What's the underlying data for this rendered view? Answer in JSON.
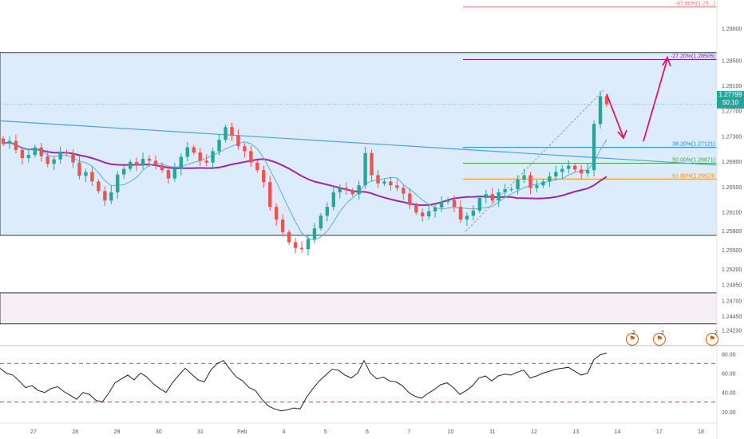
{
  "chart_data": [
    {
      "type": "candlestick",
      "x_tick_labels": [
        "27",
        "28",
        "29",
        "30",
        "31",
        "Feb",
        "4",
        "5",
        "6",
        "7",
        "10",
        "11",
        "12",
        "13",
        "14",
        "17",
        "18"
      ],
      "price_axis_ticks": [
        "1.29000",
        "1.28500",
        "1.28100",
        "1.27700",
        "1.27300",
        "1.26900",
        "1.26500",
        "1.26100",
        "1.25800",
        "1.25500",
        "1.25200",
        "1.24950",
        "1.24700",
        "1.24450",
        "1.24230"
      ],
      "ylim": [
        1.2415,
        1.2945
      ],
      "current_price": "1.27799",
      "countdown": "50:10",
      "range_box": {
        "top": 1.2862,
        "bottom": 1.2573
      },
      "lower_box": {
        "top": 1.2482,
        "bottom": 1.2433
      },
      "trendline": {
        "start": 1.2754,
        "end": 1.2684
      },
      "fibonacci": [
        {
          "label": "-67.80%(1.29...)",
          "value": 1.2934,
          "color": "#e57373"
        },
        {
          "label": "-27.20%(1.28505)",
          "value": 1.2851,
          "color": "#7b1fa2"
        },
        {
          "label": "38.20%(1.27121)",
          "value": 1.2712,
          "color": "#1e88e5"
        },
        {
          "label": "50.00%(1.26871)",
          "value": 1.2687,
          "color": "#43a047"
        },
        {
          "label": "61.80%(1.26623)",
          "value": 1.2662,
          "color": "#fb8c00"
        }
      ],
      "close_series": [
        1.2718,
        1.2722,
        1.2708,
        1.2695,
        1.27,
        1.2712,
        1.2698,
        1.2686,
        1.2693,
        1.2705,
        1.2702,
        1.2688,
        1.2667,
        1.2673,
        1.2658,
        1.2643,
        1.2628,
        1.2641,
        1.2669,
        1.2678,
        1.2689,
        1.2683,
        1.2694,
        1.2691,
        1.2684,
        1.2676,
        1.2663,
        1.2678,
        1.2697,
        1.2712,
        1.2704,
        1.2691,
        1.2688,
        1.2706,
        1.2724,
        1.2744,
        1.2731,
        1.2714,
        1.2706,
        1.2688,
        1.2676,
        1.2657,
        1.2618,
        1.2598,
        1.2578,
        1.2562,
        1.2553,
        1.2551,
        1.2567,
        1.2584,
        1.2604,
        1.2618,
        1.2641,
        1.2648,
        1.2644,
        1.2638,
        1.2652,
        1.2703,
        1.2668,
        1.2655,
        1.2658,
        1.2652,
        1.2648,
        1.2639,
        1.2621,
        1.2609,
        1.2603,
        1.2611,
        1.2617,
        1.2626,
        1.2629,
        1.2618,
        1.2598,
        1.2604,
        1.2612,
        1.2632,
        1.2638,
        1.2628,
        1.2641,
        1.2646,
        1.2646,
        1.2661,
        1.2668,
        1.2648,
        1.2652,
        1.2658,
        1.2666,
        1.2673,
        1.2678,
        1.2683,
        1.2677,
        1.2671,
        1.2676,
        1.2749,
        1.2793,
        1.278
      ],
      "rsi": {
        "ticks": [
          "80.00",
          "60.00",
          "40.00",
          "20.00"
        ],
        "ylim": [
          10,
          86
        ],
        "upper_level": 70,
        "lower_level": 30,
        "values": [
          65,
          60,
          58,
          52,
          45,
          47,
          42,
          40,
          44,
          46,
          41,
          37,
          33,
          40,
          38,
          32,
          30,
          39,
          50,
          54,
          58,
          53,
          60,
          56,
          49,
          44,
          40,
          50,
          58,
          65,
          59,
          53,
          51,
          63,
          70,
          73,
          64,
          56,
          52,
          45,
          42,
          33,
          26,
          23,
          21,
          22,
          24,
          23,
          35,
          44,
          52,
          58,
          64,
          63,
          58,
          55,
          60,
          73,
          60,
          54,
          56,
          52,
          51,
          47,
          40,
          36,
          34,
          39,
          43,
          48,
          50,
          45,
          38,
          42,
          47,
          55,
          57,
          52,
          57,
          59,
          58,
          61,
          63,
          55,
          57,
          60,
          62,
          64,
          65,
          66,
          62,
          58,
          60,
          74,
          79,
          81
        ]
      }
    }
  ]
}
